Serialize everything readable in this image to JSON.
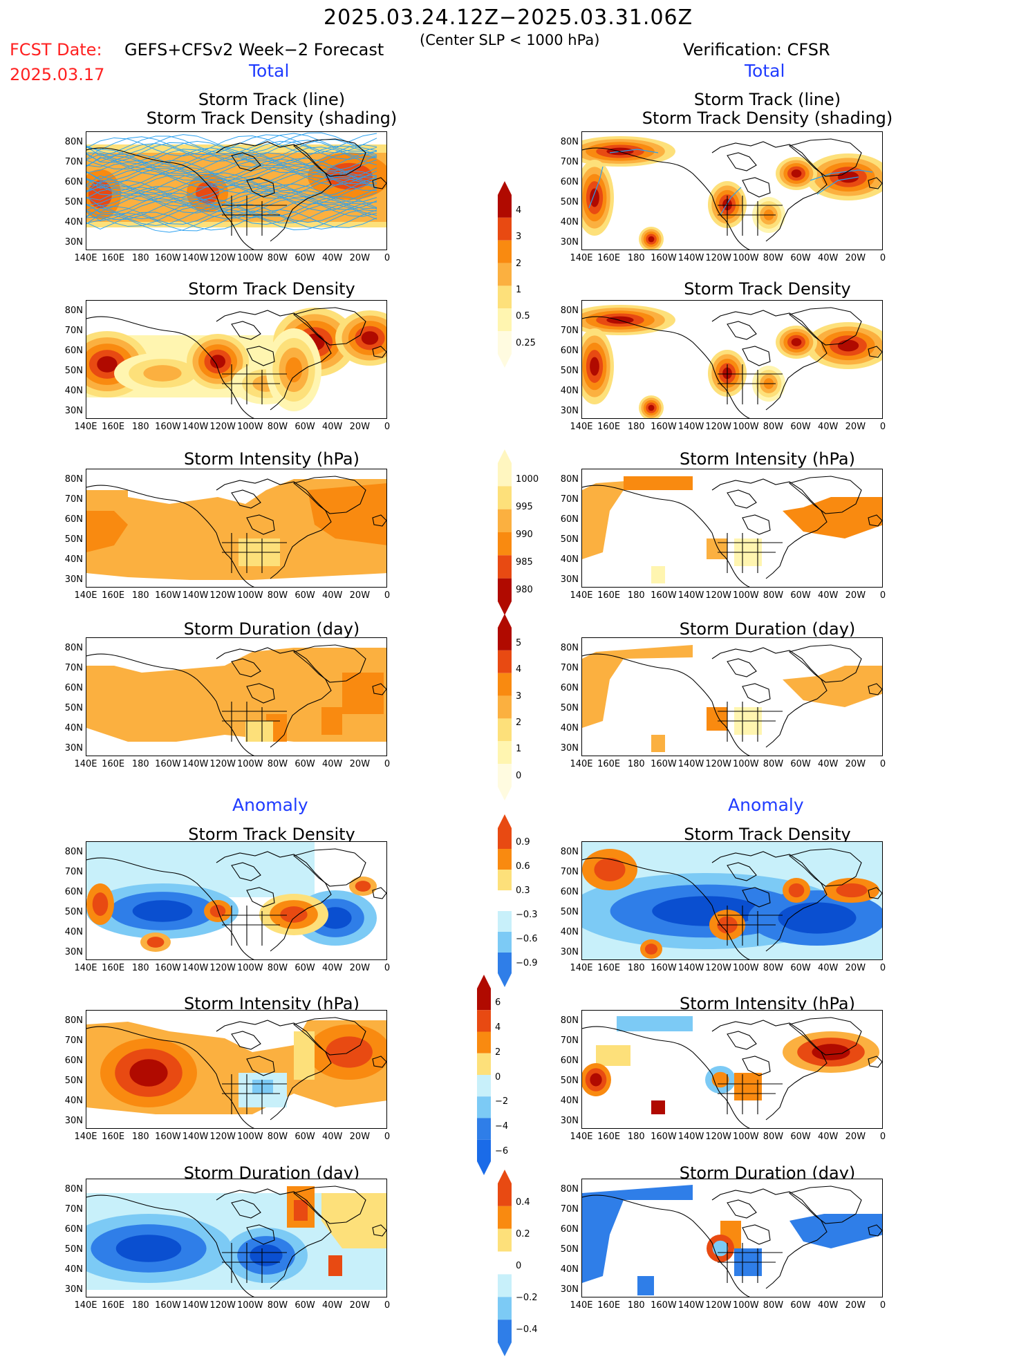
{
  "header": {
    "title": "2025.03.24.12Z−2025.03.31.06Z",
    "fcst_label": "FCST Date:",
    "fcst_date": "2025.03.17",
    "model": "GEFS+CFSv2 Week−2 Forecast",
    "criterion": "(Center SLP < 1000 hPa)",
    "verification": "Verification: CFSR"
  },
  "sections": {
    "total_left": "Total",
    "total_right": "Total",
    "anomaly_left": "Anomaly",
    "anomaly_right": "Anomaly"
  },
  "panel_titles": {
    "track_line": "Storm Track (line)",
    "track_shading": "Storm Track Density (shading)",
    "density": "Storm Track Density",
    "intensity": "Storm Intensity (hPa)",
    "duration": "Storm Duration (day)"
  },
  "axes": {
    "lat_labels": [
      "80N",
      "70N",
      "60N",
      "50N",
      "40N",
      "30N"
    ],
    "lon_labels": [
      "140E",
      "160E",
      "180",
      "160W",
      "140W",
      "120W",
      "100W",
      "80W",
      "60W",
      "40W",
      "20W",
      "0"
    ]
  },
  "colorbars": {
    "density": [
      "4",
      "3",
      "2",
      "1",
      "0.5",
      "0.25"
    ],
    "intensity": [
      "1000",
      "995",
      "990",
      "985",
      "980"
    ],
    "duration": [
      "5",
      "4",
      "3",
      "2",
      "1",
      "0"
    ],
    "density_anom": [
      "0.9",
      "0.6",
      "0.3",
      "−0.3",
      "−0.6",
      "−0.9"
    ],
    "intensity_anom": [
      "6",
      "4",
      "2",
      "0",
      "−2",
      "−4",
      "−6"
    ],
    "duration_anom": [
      "0.4",
      "0.2",
      "0",
      "−0.2",
      "−0.4"
    ]
  },
  "colors": {
    "c1": "#fff5b0",
    "c2": "#fde07a",
    "c3": "#fbb040",
    "c4": "#f98a10",
    "c5": "#e84a12",
    "c6": "#b00a00",
    "n1": "#c8f0fa",
    "n2": "#7ccaf5",
    "n3": "#2f7ee8",
    "n4": "#0a4fd0",
    "track": "#2aa0f0"
  }
}
